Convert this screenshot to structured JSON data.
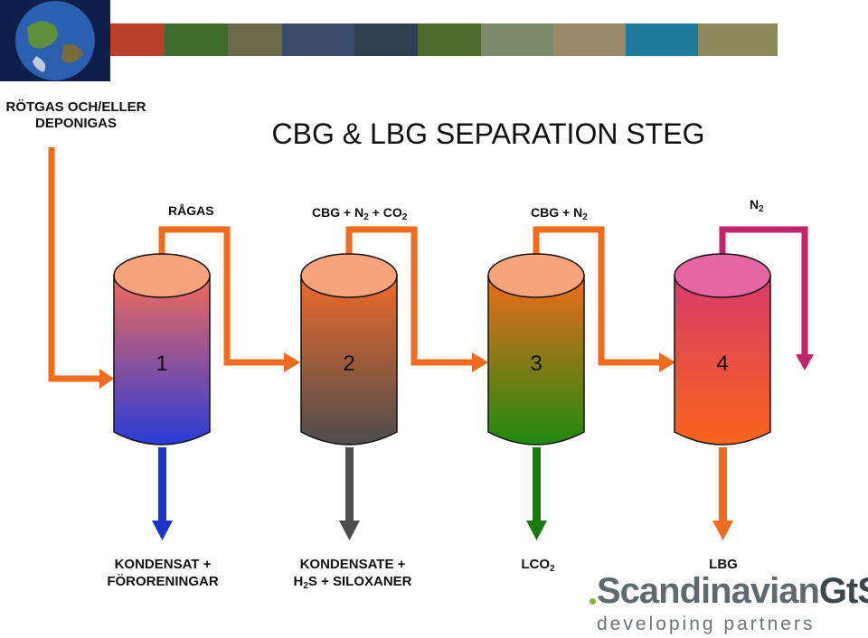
{
  "header": {
    "input_label_line1": "RÖTGAS OCH/ELLER",
    "input_label_line2": "DEPONIGAS",
    "title": "CBG & LBG SEPARATION STEG"
  },
  "streams": [
    {
      "label": "RÅGAS"
    },
    {
      "label_parts": [
        "CBG + N",
        "2",
        " + CO",
        "2"
      ]
    },
    {
      "label_parts": [
        "CBG + N",
        "2"
      ]
    },
    {
      "label_parts": [
        "N",
        "2"
      ]
    }
  ],
  "vessels": [
    {
      "number": "1",
      "top_color": "#f7a37c",
      "grad_top": "#f26b5b",
      "grad_bottom": "#2a3bd9"
    },
    {
      "number": "2",
      "top_color": "#f7a37c",
      "grad_top": "#ef6a2a",
      "grad_bottom": "#4d4d4d"
    },
    {
      "number": "3",
      "top_color": "#f7a37c",
      "grad_top": "#f06a1c",
      "grad_bottom": "#1f8a10"
    },
    {
      "number": "4",
      "top_color": "#e566a3",
      "grad_top": "#d93a6b",
      "grad_bottom": "#f7651c"
    }
  ],
  "outputs": [
    {
      "line1": "KONDENSAT +",
      "line2": "FÖRORENINGAR",
      "color": "#1733c8"
    },
    {
      "line1": "KONDENSATE +",
      "line2_parts": [
        "H",
        "2",
        "S + SILOXANER"
      ],
      "color": "#4d4d4d"
    },
    {
      "parts": [
        "LCO",
        "2"
      ],
      "color": "#1a7a10"
    },
    {
      "label": "LBG",
      "color": "#f26a1c"
    }
  ],
  "colors": {
    "flow_orange": "#f26a1c",
    "n2_magenta": "#c4216b"
  },
  "logo": {
    "word1": "Scandinavian",
    "word2": "GtS",
    "tagline": "developing partners"
  }
}
